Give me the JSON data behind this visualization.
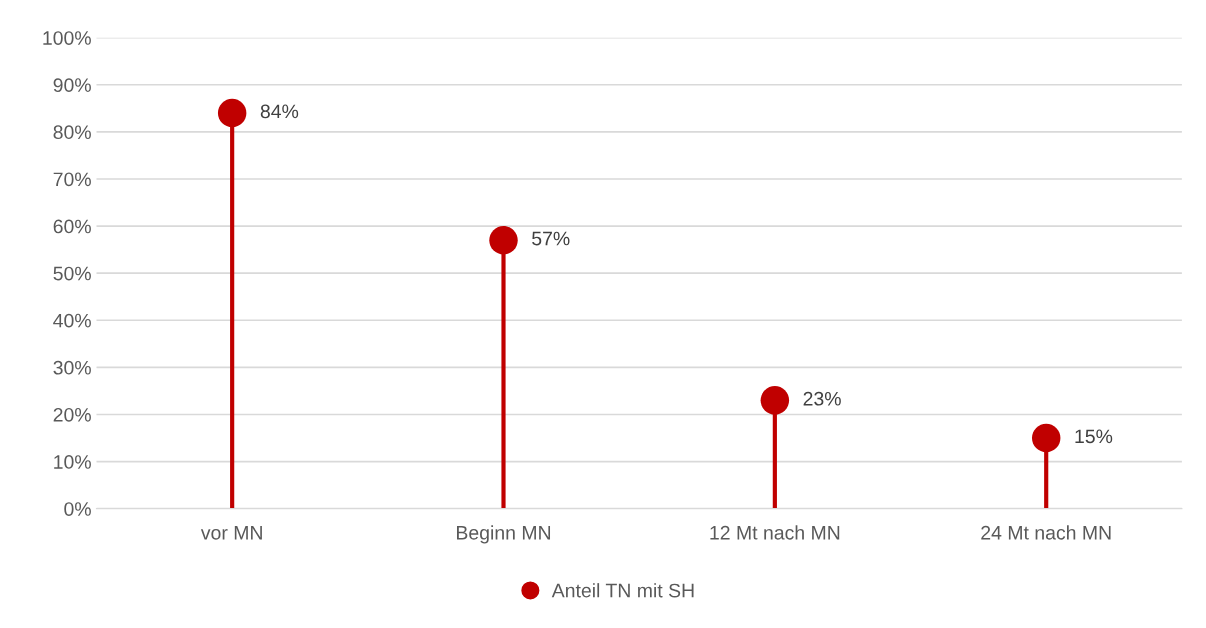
{
  "chart_data": {
    "type": "lollipop",
    "categories": [
      "vor MN",
      "Beginn MN",
      "12 Mt nach MN",
      "24 Mt nach MN"
    ],
    "series": [
      {
        "name": "Anteil TN mit SH",
        "color": "#c00000",
        "values": [
          84,
          57,
          23,
          15
        ],
        "value_labels": [
          "84%",
          "57%",
          "23%",
          "15%"
        ]
      }
    ],
    "ylim": [
      0,
      100
    ],
    "yticks": [
      {
        "value": 0,
        "label": "0%"
      },
      {
        "value": 10,
        "label": "10%"
      },
      {
        "value": 20,
        "label": "20%"
      },
      {
        "value": 30,
        "label": "30%"
      },
      {
        "value": 40,
        "label": "40%"
      },
      {
        "value": 50,
        "label": "50%"
      },
      {
        "value": 60,
        "label": "60%"
      },
      {
        "value": 70,
        "label": "70%"
      },
      {
        "value": 80,
        "label": "80%"
      },
      {
        "value": 90,
        "label": "90%"
      },
      {
        "value": 100,
        "label": "100%"
      }
    ],
    "grid": "y",
    "legend": "bottom",
    "marker": "circle"
  }
}
